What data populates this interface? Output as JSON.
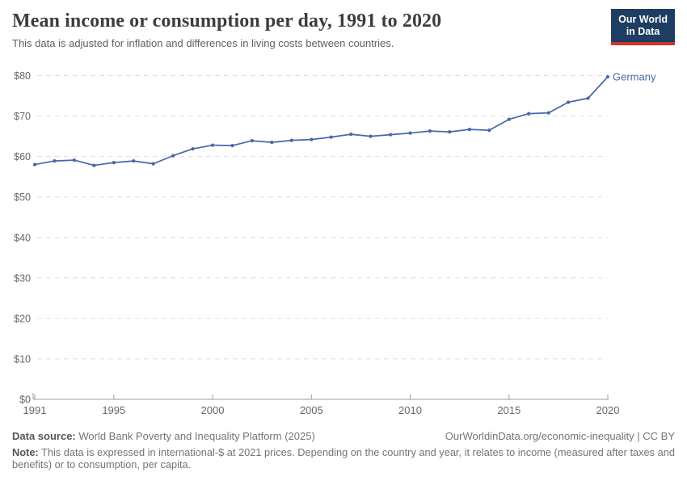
{
  "header": {
    "title": "Mean income or consumption per day, 1991 to 2020",
    "subtitle": "This data is adjusted for inflation and differences in living costs between countries.",
    "logo": {
      "line1": "Our World",
      "line2": "in Data",
      "bg_color": "#1d3d63",
      "accent_color": "#d0342c"
    }
  },
  "chart_data": {
    "type": "line",
    "title": "Mean income or consumption per day, 1991 to 2020",
    "xlabel": "",
    "ylabel": "",
    "ylim": [
      0,
      80
    ],
    "yticks": [
      0,
      10,
      20,
      30,
      40,
      50,
      60,
      70,
      80
    ],
    "ytick_prefix": "$",
    "xticks": [
      1991,
      1995,
      2000,
      2005,
      2010,
      2015,
      2020
    ],
    "xlim": [
      1991,
      2020
    ],
    "grid": "horizontal-dashed",
    "legend_position": "end-of-line-label",
    "colors": {
      "line": "#4668a8",
      "grid": "#dedede",
      "axis": "#9e9e9e",
      "tick_text": "#666666"
    },
    "series": [
      {
        "name": "Germany",
        "color": "#4668a8",
        "x": [
          1991,
          1992,
          1993,
          1994,
          1995,
          1996,
          1997,
          1998,
          1999,
          2000,
          2001,
          2002,
          2003,
          2004,
          2005,
          2006,
          2007,
          2008,
          2009,
          2010,
          2011,
          2012,
          2013,
          2014,
          2015,
          2016,
          2017,
          2018,
          2019,
          2020
        ],
        "values": [
          58.0,
          58.9,
          59.1,
          57.8,
          58.5,
          58.9,
          58.2,
          60.2,
          61.9,
          62.8,
          62.7,
          63.9,
          63.5,
          64.0,
          64.2,
          64.8,
          65.5,
          65.0,
          65.4,
          65.8,
          66.3,
          66.1,
          66.7,
          66.5,
          69.2,
          70.6,
          70.8,
          73.4,
          74.4,
          79.7
        ]
      }
    ]
  },
  "footer": {
    "source_label": "Data source:",
    "source_text": " World Bank Poverty and Inequality Platform (2025)",
    "link_text": "OurWorldinData.org/economic-inequality | CC BY",
    "note_label": "Note:",
    "note_text": " This data is expressed in international-$ at 2021 prices. Depending on the country and year, it relates to income (measured after taxes and benefits) or to consumption, per capita."
  }
}
